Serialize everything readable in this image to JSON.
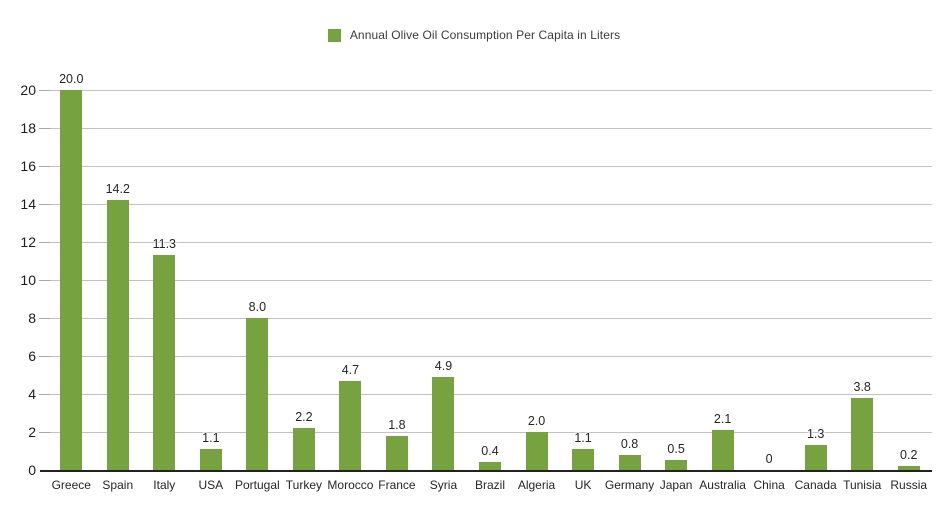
{
  "legend": {
    "label": "Annual Olive Oil Consumption Per Capita in Liters",
    "swatch_color": "#76A33F"
  },
  "colors": {
    "bar": "#76A33F",
    "grid": "#c2c2c2",
    "axis": "#222222",
    "tick": "#a8a8a8",
    "text": "#262626"
  },
  "chart_data": {
    "type": "bar",
    "title": "Annual Olive Oil Consumption Per Capita in Liters",
    "categories": [
      "Greece",
      "Spain",
      "Italy",
      "USA",
      "Portugal",
      "Turkey",
      "Morocco",
      "France",
      "Syria",
      "Brazil",
      "Algeria",
      "UK",
      "Germany",
      "Japan",
      "Australia",
      "China",
      "Canada",
      "Tunisia",
      "Russia"
    ],
    "values": [
      20.0,
      14.2,
      11.3,
      1.1,
      8.0,
      2.2,
      4.7,
      1.8,
      4.9,
      0.4,
      2.0,
      1.1,
      0.8,
      0.5,
      2.1,
      0,
      1.3,
      3.8,
      0.2
    ],
    "value_labels": [
      "20.0",
      "14.2",
      "11.3",
      "1.1",
      "8.0",
      "2.2",
      "4.7",
      "1.8",
      "4.9",
      "0.4",
      "2.0",
      "1.1",
      "0.8",
      "0.5",
      "2.1",
      "0",
      "1.3",
      "3.8",
      "0.2"
    ],
    "series": [
      {
        "name": "Annual Olive Oil Consumption Per Capita in Liters",
        "values": [
          20.0,
          14.2,
          11.3,
          1.1,
          8.0,
          2.2,
          4.7,
          1.8,
          4.9,
          0.4,
          2.0,
          1.1,
          0.8,
          0.5,
          2.1,
          0,
          1.3,
          3.8,
          0.2
        ]
      }
    ],
    "xlabel": "",
    "ylabel": "",
    "ylim": [
      0,
      20
    ],
    "y_ticks": [
      0,
      2,
      4,
      6,
      8,
      10,
      12,
      14,
      16,
      18,
      20
    ],
    "grid": true,
    "legend_position": "top-center",
    "bar_color": "#76A33F"
  }
}
